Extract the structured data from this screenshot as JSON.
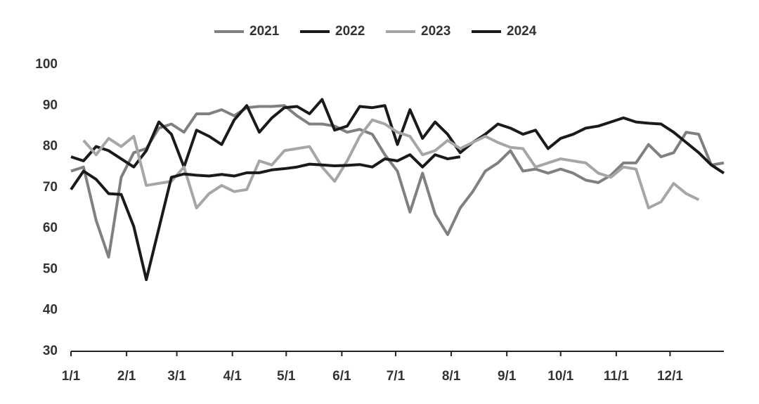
{
  "chart_data": {
    "type": "line",
    "x": [
      0,
      7,
      14,
      21,
      28,
      35,
      42,
      49,
      56,
      63,
      70,
      77,
      84,
      91,
      98,
      105,
      112,
      119,
      126,
      133,
      140,
      147,
      154,
      161,
      168,
      175,
      182,
      189,
      196,
      203,
      210,
      217,
      224,
      231,
      238,
      245,
      252,
      259,
      266,
      273,
      280,
      287,
      294,
      301,
      308,
      315,
      322,
      329,
      336,
      343,
      350,
      357,
      364
    ],
    "xlim": [
      0,
      364
    ],
    "xticks": [
      {
        "value": 0,
        "label": "1/1"
      },
      {
        "value": 31,
        "label": "2/1"
      },
      {
        "value": 59,
        "label": "3/1"
      },
      {
        "value": 90,
        "label": "4/1"
      },
      {
        "value": 120,
        "label": "5/1"
      },
      {
        "value": 151,
        "label": "6/1"
      },
      {
        "value": 181,
        "label": "7/1"
      },
      {
        "value": 212,
        "label": "8/1"
      },
      {
        "value": 243,
        "label": "9/1"
      },
      {
        "value": 273,
        "label": "10/1"
      },
      {
        "value": 304,
        "label": "11/1"
      },
      {
        "value": 334,
        "label": "12/1"
      }
    ],
    "ylim": [
      30,
      100
    ],
    "yticks": [
      30,
      40,
      50,
      60,
      70,
      80,
      90,
      100
    ],
    "series": [
      {
        "name": "2021",
        "color": "#808080",
        "values": [
          74,
          75,
          62,
          53,
          72.5,
          78.5,
          79.5,
          84.5,
          85.5,
          83.5,
          88,
          88,
          89,
          87.5,
          89.5,
          89.8,
          89.8,
          90,
          87.5,
          85.5,
          85.5,
          85,
          83.5,
          84.2,
          83,
          78,
          74,
          64,
          73.5,
          63.5,
          58.5,
          65,
          69,
          74,
          76,
          79,
          74,
          74.5,
          73.5,
          74.5,
          73.5,
          71.8,
          71.2,
          73,
          76,
          76,
          80.5,
          77.5,
          78.5,
          83.5,
          83,
          75.5,
          76
        ]
      },
      {
        "name": "2022",
        "color": "#1a1a1a",
        "values": [
          77.5,
          76.5,
          80,
          79,
          77,
          75,
          79,
          86,
          83,
          75,
          84,
          82.5,
          80.5,
          86.5,
          90,
          83.5,
          87,
          89.5,
          89.8,
          88,
          91.5,
          84,
          85,
          89.8,
          89.5,
          90,
          80.5,
          89,
          82,
          86,
          83,
          78.5,
          81,
          83,
          85.5,
          84.5,
          83,
          84,
          79.5,
          82,
          83,
          84.5,
          85,
          86,
          87,
          86,
          85.7,
          85.5,
          83.5,
          81,
          78.5,
          75.5,
          73.5
        ]
      },
      {
        "name": "2023",
        "color": "#a6a6a6",
        "values": [
          null,
          81.5,
          78,
          82,
          80,
          82.5,
          70.5,
          71,
          71.5,
          75,
          65,
          68.5,
          70.5,
          69,
          69.5,
          76.5,
          75.5,
          79,
          79.5,
          80,
          75,
          71.5,
          76.5,
          82.5,
          86.5,
          85.5,
          83.5,
          82.5,
          78,
          79,
          81.5,
          79.5,
          81,
          82.5,
          81,
          79.8,
          79.5,
          75,
          76,
          77,
          76.5,
          76,
          73.5,
          72.5,
          75,
          74.5,
          65,
          66.5,
          71,
          68.5,
          67,
          null,
          null
        ]
      },
      {
        "name": "2024",
        "color": "#1a1a1a",
        "values": [
          69.5,
          74,
          72,
          68.5,
          68.3,
          60.5,
          47.5,
          60,
          72.5,
          73.3,
          73,
          72.8,
          73.2,
          72.8,
          73.6,
          73.6,
          74.3,
          74.6,
          75,
          75.7,
          75.5,
          75.3,
          75.4,
          75.6,
          75,
          77,
          76.5,
          78,
          75,
          78,
          77,
          77.5,
          null,
          null,
          null,
          null,
          null,
          null,
          null,
          null,
          null,
          null,
          null,
          null,
          null,
          null,
          null,
          null,
          null,
          null,
          null,
          null,
          null
        ]
      }
    ]
  }
}
